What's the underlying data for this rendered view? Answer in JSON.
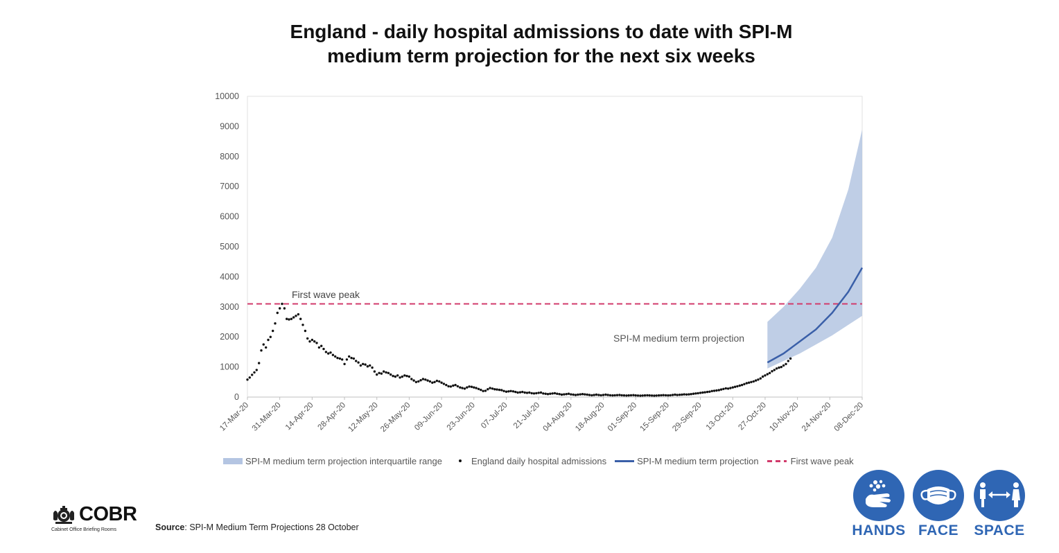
{
  "title_lines": [
    "England - daily hospital admissions to date with SPI-M",
    "medium term projection for the next six weeks"
  ],
  "chart_data": {
    "type": "scatter",
    "title": "England - daily hospital admissions to date with SPI-M medium term projection for the next six weeks",
    "xlim": [
      "2020-03-17",
      "2020-12-08"
    ],
    "ylim": [
      0,
      10000
    ],
    "y_ticks": [
      0,
      1000,
      2000,
      3000,
      4000,
      5000,
      6000,
      7000,
      8000,
      9000,
      10000
    ],
    "x_tick_labels": [
      "17-Mar-20",
      "31-Mar-20",
      "14-Apr-20",
      "28-Apr-20",
      "12-May-20",
      "26-May-20",
      "09-Jun-20",
      "23-Jun-20",
      "07-Jul-20",
      "21-Jul-20",
      "04-Aug-20",
      "18-Aug-20",
      "01-Sep-20",
      "15-Sep-20",
      "29-Sep-20",
      "13-Oct-20",
      "27-Oct-20",
      "10-Nov-20",
      "24-Nov-20",
      "08-Dec-20"
    ],
    "grid": false,
    "legend_position": "bottom",
    "annotations": [
      "First wave peak",
      "SPI-M medium term projection"
    ],
    "series": [
      {
        "name": "England daily hospital admissions",
        "type": "scatter",
        "color": "#111111",
        "start_date": "2020-03-17",
        "values": [
          580,
          650,
          740,
          820,
          900,
          1130,
          1550,
          1750,
          1650,
          1900,
          2000,
          2200,
          2450,
          2800,
          2950,
          3100,
          2950,
          2600,
          2580,
          2600,
          2650,
          2700,
          2750,
          2600,
          2400,
          2200,
          1950,
          1850,
          1900,
          1850,
          1800,
          1650,
          1700,
          1600,
          1500,
          1450,
          1480,
          1400,
          1350,
          1300,
          1280,
          1250,
          1100,
          1250,
          1350,
          1300,
          1280,
          1200,
          1150,
          1050,
          1100,
          1080,
          1020,
          1050,
          980,
          850,
          750,
          800,
          780,
          850,
          820,
          800,
          750,
          700,
          680,
          720,
          650,
          680,
          720,
          700,
          680,
          600,
          550,
          500,
          520,
          560,
          600,
          580,
          550,
          520,
          480,
          500,
          540,
          520,
          480,
          440,
          400,
          360,
          350,
          380,
          400,
          360,
          320,
          300,
          280,
          320,
          350,
          340,
          320,
          300,
          270,
          240,
          200,
          210,
          260,
          300,
          280,
          260,
          250,
          240,
          230,
          200,
          180,
          190,
          200,
          190,
          170,
          150,
          160,
          170,
          150,
          140,
          150,
          130,
          120,
          130,
          140,
          150,
          120,
          110,
          100,
          110,
          120,
          130,
          110,
          100,
          80,
          90,
          100,
          110,
          90,
          80,
          70,
          80,
          90,
          100,
          90,
          80,
          70,
          60,
          70,
          80,
          70,
          60,
          70,
          80,
          70,
          60,
          55,
          60,
          65,
          70,
          60,
          55,
          50,
          55,
          60,
          65,
          55,
          50,
          45,
          50,
          55,
          60,
          55,
          50,
          45,
          50,
          55,
          60,
          65,
          60,
          55,
          60,
          70,
          80,
          70,
          75,
          80,
          90,
          85,
          90,
          100,
          110,
          120,
          130,
          140,
          150,
          160,
          170,
          180,
          200,
          210,
          220,
          230,
          250,
          270,
          290,
          280,
          300,
          320,
          340,
          360,
          380,
          400,
          430,
          460,
          480,
          500,
          520,
          550,
          580,
          620,
          680,
          720,
          760,
          800,
          860,
          900,
          950,
          980,
          1000,
          1050,
          1100,
          1200,
          1280
        ]
      },
      {
        "name": "SPI-M medium term projection",
        "type": "line",
        "color": "#3a5fa8",
        "x": [
          "2020-10-28",
          "2020-11-04",
          "2020-11-11",
          "2020-11-18",
          "2020-11-25",
          "2020-12-02",
          "2020-12-08"
        ],
        "values": [
          1150,
          1450,
          1850,
          2250,
          2800,
          3500,
          4300
        ]
      },
      {
        "name": "SPI-M medium term projection interquartile range",
        "type": "area",
        "color": "#b4c5e2",
        "x": [
          "2020-10-28",
          "2020-11-04",
          "2020-11-11",
          "2020-11-18",
          "2020-11-25",
          "2020-12-02",
          "2020-12-08"
        ],
        "low": [
          950,
          1200,
          1450,
          1750,
          2050,
          2400,
          2700
        ],
        "high": [
          2500,
          3000,
          3600,
          4300,
          5300,
          6900,
          8900
        ]
      },
      {
        "name": "First wave peak",
        "type": "hline",
        "color": "#d23a6b",
        "value": 3100
      }
    ]
  },
  "legend": {
    "band_label": "SPI-M medium term projection interquartile range",
    "dots_label": "England daily hospital admissions",
    "line_label": "SPI-M medium term projection",
    "dash_label": "First wave peak"
  },
  "logo": {
    "name": "COBR",
    "subtitle": "Cabinet Office Briefing Rooms"
  },
  "source": {
    "label": "Source",
    "text": ": SPI-M Medium Term Projections 28 October"
  },
  "hands_face_space": [
    {
      "label": "HANDS",
      "icon": "hands-washing-icon"
    },
    {
      "label": "FACE",
      "icon": "face-mask-icon"
    },
    {
      "label": "SPACE",
      "icon": "social-distance-icon"
    }
  ],
  "colors": {
    "brand_blue": "#2f66b4",
    "band": "#b4c5e2",
    "projection": "#3a5fa8",
    "peak_line": "#d23a6b"
  }
}
